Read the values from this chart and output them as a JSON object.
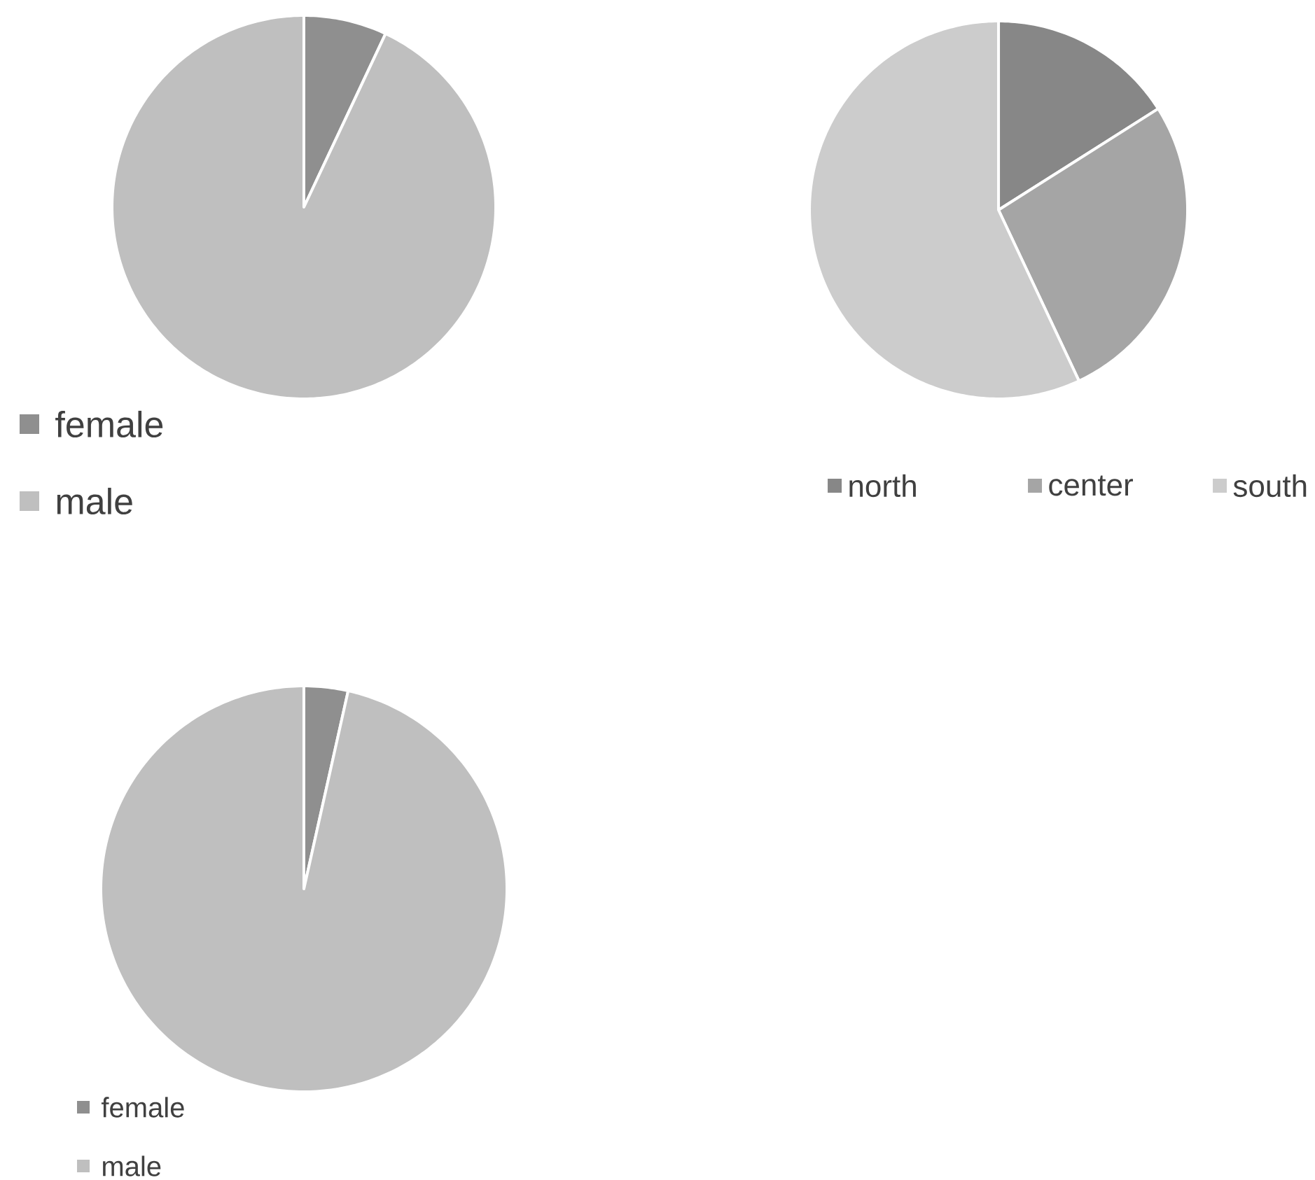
{
  "chart_data": [
    {
      "type": "pie",
      "categories": [
        "female",
        "male"
      ],
      "values": [
        7,
        93
      ],
      "colors": [
        "#8f8f8f",
        "#bfbfbf"
      ],
      "legend": "bottom left"
    },
    {
      "type": "pie",
      "categories": [
        "north",
        "center",
        "south"
      ],
      "values": [
        16,
        27,
        57
      ],
      "colors": [
        "#878787",
        "#a5a5a5",
        "#cccccc"
      ],
      "legend": "bottom"
    },
    {
      "type": "pie",
      "categories": [
        "female",
        "male"
      ],
      "values": [
        3.5,
        96.5
      ],
      "colors": [
        "#8f8f8f",
        "#bfbfbf"
      ],
      "legend": "bottom left"
    }
  ]
}
